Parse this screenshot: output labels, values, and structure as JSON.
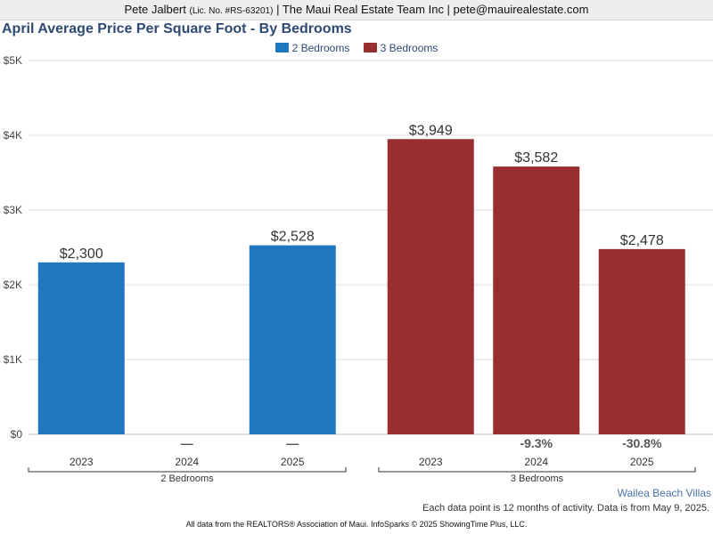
{
  "header": {
    "agent": "Pete Jalbert",
    "license": "(Lic. No. #RS-63201)",
    "company_email": "| The Maui Real Estate Team Inc | pete@mauirealestate.com"
  },
  "footer": {
    "location": "Wailea Beach Villas",
    "activity_note": "Each data point is 12 months of activity. Data is from May 9, 2025.",
    "source_note": "All data from the REALTORS® Association of Maui. InfoSparks © 2025 ShowingTime Plus, LLC."
  },
  "chart_data": {
    "type": "bar",
    "title": "April Average Price Per Square Foot - By Bedrooms",
    "legend_position": "top-center",
    "grid": true,
    "ylim": [
      0,
      5000
    ],
    "yticks": [
      0,
      1000,
      2000,
      3000,
      4000,
      5000
    ],
    "ytick_labels": [
      "$0",
      "$1K",
      "$2K",
      "$3K",
      "$4K",
      "$5K"
    ],
    "groups": [
      {
        "name": "2 Bedrooms",
        "color": "#1f77bf",
        "categories": [
          "2023",
          "2024",
          "2025"
        ],
        "values": [
          2300,
          null,
          2528
        ],
        "value_labels": [
          "$2,300",
          "",
          "$2,528"
        ],
        "change_labels": [
          "",
          "—",
          "—"
        ]
      },
      {
        "name": "3 Bedrooms",
        "color": "#992e2e",
        "categories": [
          "2023",
          "2024",
          "2025"
        ],
        "values": [
          3949,
          3582,
          2478
        ],
        "value_labels": [
          "$3,949",
          "$3,582",
          "$2,478"
        ],
        "change_labels": [
          "",
          "-9.3%",
          "-30.8%"
        ]
      }
    ],
    "legend": [
      {
        "name": "2 Bedrooms",
        "color": "#1f77bf"
      },
      {
        "name": "3 Bedrooms",
        "color": "#992e2e"
      }
    ]
  }
}
